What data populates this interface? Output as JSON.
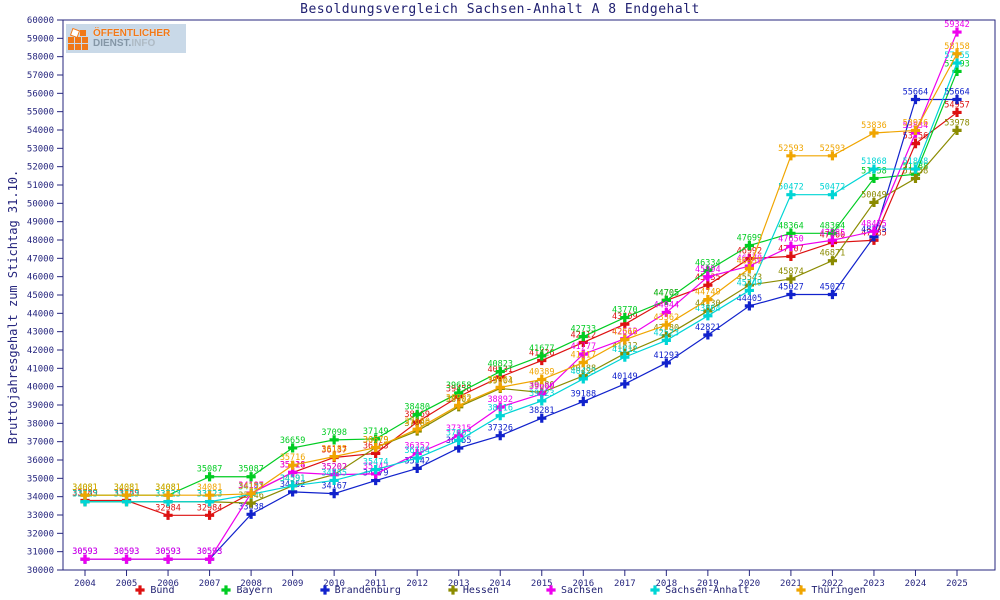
{
  "title": "Besoldungsvergleich Sachsen-Anhalt A 8 Endgehalt",
  "y_axis_title": "Bruttojahresgehalt zum Stichtag 31.10.",
  "logo": {
    "line1": "ÖFFENTLICHER",
    "line2a": "DIENST.",
    "line2b": "INFO"
  },
  "axis_color": "#26267e",
  "chart_data": {
    "type": "line",
    "title": "Besoldungsvergleich Sachsen-Anhalt A 8 Endgehalt",
    "xlabel": "",
    "ylabel": "Bruttojahresgehalt zum Stichtag 31.10.",
    "ylim": [
      30000,
      60000
    ],
    "ytick_step": 1000,
    "grid": false,
    "legend_position": "bottom",
    "point_labels": true,
    "x": [
      2004,
      2005,
      2006,
      2007,
      2008,
      2009,
      2010,
      2011,
      2012,
      2013,
      2014,
      2015,
      2016,
      2017,
      2018,
      2019,
      2020,
      2021,
      2022,
      2023,
      2024,
      2025
    ],
    "series": [
      {
        "name": "Bund",
        "color": "#dd1111",
        "values": [
          33789,
          33789,
          32984,
          32984,
          34193,
          35318,
          36137,
          36363,
          38069,
          39458,
          40531,
          41426,
          42412,
          43409,
          44705,
          45535,
          46992,
          47107,
          47860,
          47985,
          53256,
          54957
        ]
      },
      {
        "name": "Bayern",
        "color": "#00cc22",
        "values": [
          34081,
          34081,
          34081,
          35087,
          35087,
          36659,
          37098,
          37149,
          38480,
          39658,
          40823,
          41677,
          42733,
          43770,
          44705,
          46334,
          47699,
          48364,
          48364,
          51358,
          51588,
          57193
        ]
      },
      {
        "name": "Brandenburg",
        "color": "#1122cc",
        "values": [
          30593,
          30593,
          30593,
          30593,
          33038,
          34262,
          34167,
          34879,
          35542,
          36655,
          37326,
          38281,
          39188,
          40149,
          41293,
          42821,
          44405,
          45027,
          45027,
          48175,
          55664,
          55664
        ]
      },
      {
        "name": "Hessen",
        "color": "#8b8b00",
        "values": [
          33723,
          33723,
          33723,
          33723,
          33646,
          34591,
          35202,
          36679,
          37580,
          38902,
          39904,
          39680,
          40588,
          41812,
          42780,
          44130,
          45543,
          45874,
          46871,
          50049,
          51358,
          53978
        ]
      },
      {
        "name": "Sachsen",
        "color": "#ee00ee",
        "values": [
          30593,
          30593,
          30593,
          30593,
          34187,
          35324,
          35202,
          35242,
          36352,
          37315,
          38892,
          39600,
          41777,
          42612,
          44044,
          45994,
          46578,
          47650,
          47985,
          48475,
          53834,
          59342
        ]
      },
      {
        "name": "Sachsen-Anhalt",
        "color": "#00d5d5",
        "values": [
          33723,
          33723,
          33723,
          33723,
          34127,
          34591,
          34885,
          35474,
          36104,
          37065,
          38416,
          39223,
          40423,
          41612,
          42523,
          43864,
          45249,
          50472,
          50472,
          51868,
          51868,
          57655
        ]
      },
      {
        "name": "Thüringen",
        "color": "#f0a500",
        "values": [
          34081,
          34081,
          34081,
          34081,
          34157,
          35716,
          36185,
          36679,
          37680,
          38982,
          39961,
          40389,
          41317,
          42566,
          43362,
          44749,
          46451,
          52593,
          52593,
          53836,
          53976,
          58158
        ]
      }
    ]
  }
}
